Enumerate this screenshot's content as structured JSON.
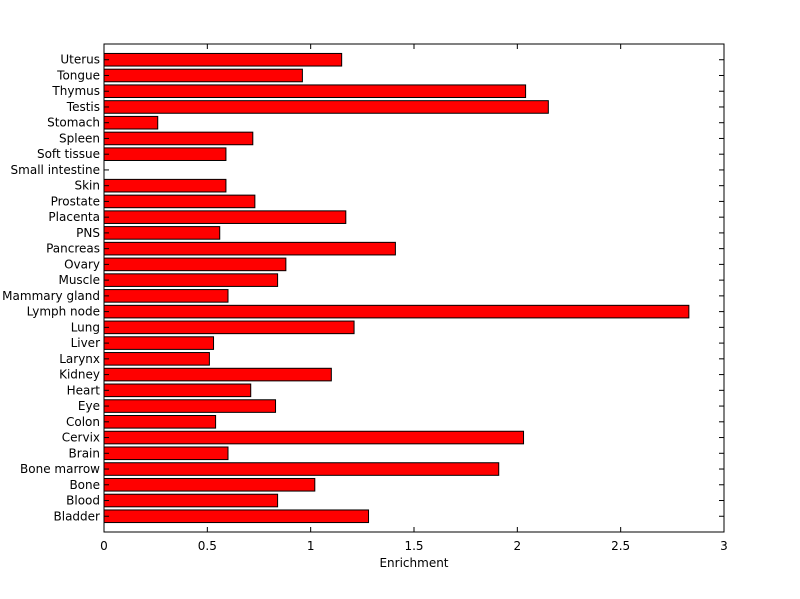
{
  "chart_data": {
    "type": "bar",
    "orientation": "horizontal",
    "title": "",
    "xlabel": "Enrichment",
    "ylabel": "",
    "xlim": [
      0,
      3
    ],
    "xticks": [
      "0",
      "0.5",
      "1",
      "1.5",
      "2",
      "2.5",
      "3"
    ],
    "grid": false,
    "bar_color": "#ff0000",
    "categories": [
      "Bladder",
      "Blood",
      "Bone",
      "Bone marrow",
      "Brain",
      "Cervix",
      "Colon",
      "Eye",
      "Heart",
      "Kidney",
      "Larynx",
      "Liver",
      "Lung",
      "Lymph node",
      "Mammary gland",
      "Muscle",
      "Ovary",
      "Pancreas",
      "PNS",
      "Placenta",
      "Prostate",
      "Skin",
      "Small intestine",
      "Soft tissue",
      "Spleen",
      "Stomach",
      "Testis",
      "Thymus",
      "Tongue",
      "Uterus"
    ],
    "values": [
      1.28,
      0.84,
      1.02,
      1.91,
      0.6,
      2.03,
      0.54,
      0.83,
      0.71,
      1.1,
      0.51,
      0.53,
      1.21,
      2.83,
      0.6,
      0.84,
      0.88,
      1.41,
      0.56,
      1.17,
      0.73,
      0.59,
      0.0,
      0.59,
      0.72,
      0.26,
      2.15,
      2.04,
      0.96,
      1.15
    ]
  }
}
